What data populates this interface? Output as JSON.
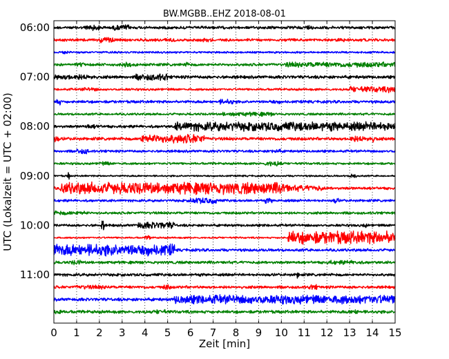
{
  "chart_data": {
    "type": "line",
    "title": "BW.MGBB..EHZ 2018-08-01",
    "xlabel": "Zeit  [min]",
    "ylabel": "UTC (Lokalzeit = UTC + 02:00)",
    "xlim": [
      0,
      15
    ],
    "x_ticks": [
      "0",
      "1",
      "2",
      "3",
      "4",
      "5",
      "6",
      "7",
      "8",
      "9",
      "10",
      "11",
      "12",
      "13",
      "14",
      "15"
    ],
    "y_tick_labels": [
      "06:00",
      "07:00",
      "08:00",
      "09:00",
      "10:00",
      "11:00"
    ],
    "grid": "vertical dotted lines at each minute",
    "colors": [
      "#000000",
      "#ff0000",
      "#0000ff",
      "#008000"
    ],
    "series": [
      {
        "start": "06:00",
        "color": "#000000",
        "amplitude": 1.0,
        "bursts": [
          [
            1.4,
            2.0,
            2.2
          ],
          [
            2.6,
            3.3,
            2.0
          ],
          [
            11.0,
            11.4,
            1.8
          ]
        ]
      },
      {
        "start": "06:15",
        "color": "#ff0000",
        "amplitude": 1.0,
        "bursts": [
          [
            2.0,
            2.6,
            2.2
          ],
          [
            4.8,
            5.3,
            1.6
          ],
          [
            6.5,
            7.0,
            1.4
          ],
          [
            12.5,
            12.8,
            1.4
          ]
        ]
      },
      {
        "start": "06:30",
        "color": "#0000ff",
        "amplitude": 0.7,
        "bursts": [
          [
            0.3,
            0.6,
            1.2
          ]
        ]
      },
      {
        "start": "06:45",
        "color": "#008000",
        "amplitude": 1.0,
        "bursts": [
          [
            1.0,
            1.3,
            1.6
          ],
          [
            3.0,
            3.4,
            1.9
          ],
          [
            5.7,
            6.0,
            1.7
          ],
          [
            10.2,
            15.0,
            1.9
          ]
        ]
      },
      {
        "start": "07:00",
        "color": "#000000",
        "amplitude": 1.1,
        "bursts": [
          [
            0.0,
            1.8,
            2.0
          ],
          [
            3.6,
            5.0,
            2.4
          ],
          [
            4.8,
            4.9,
            3.0
          ]
        ]
      },
      {
        "start": "07:15",
        "color": "#ff0000",
        "amplitude": 0.8,
        "bursts": [
          [
            1.2,
            1.9,
            1.4
          ],
          [
            13.0,
            15.0,
            2.2
          ]
        ]
      },
      {
        "start": "07:30",
        "color": "#0000ff",
        "amplitude": 1.0,
        "bursts": [
          [
            0.0,
            0.3,
            2.2
          ],
          [
            7.3,
            7.9,
            1.9
          ],
          [
            9.5,
            10.0,
            1.4
          ]
        ]
      },
      {
        "start": "07:45",
        "color": "#008000",
        "amplitude": 0.8,
        "bursts": [
          [
            7.4,
            9.6,
            1.5
          ]
        ]
      },
      {
        "start": "08:00",
        "color": "#000000",
        "amplitude": 1.0,
        "bursts": [
          [
            1.4,
            2.0,
            1.6
          ],
          [
            5.3,
            15.0,
            3.2
          ]
        ]
      },
      {
        "start": "08:15",
        "color": "#ff0000",
        "amplitude": 1.1,
        "bursts": [
          [
            0.0,
            0.2,
            2.4
          ],
          [
            3.8,
            6.6,
            3.2
          ],
          [
            13.0,
            14.2,
            2.2
          ]
        ]
      },
      {
        "start": "08:30",
        "color": "#0000ff",
        "amplitude": 0.9,
        "bursts": [
          [
            1.0,
            1.5,
            2.0
          ],
          [
            9.5,
            10.0,
            1.5
          ]
        ]
      },
      {
        "start": "08:45",
        "color": "#008000",
        "amplitude": 0.8,
        "bursts": [
          [
            2.0,
            2.5,
            1.4
          ],
          [
            9.3,
            10.0,
            1.9
          ]
        ]
      },
      {
        "start": "09:00",
        "color": "#000000",
        "amplitude": 0.6,
        "bursts": [
          [
            0.6,
            0.7,
            2.8
          ],
          [
            13.0,
            13.3,
            1.8
          ]
        ]
      },
      {
        "start": "09:15",
        "color": "#ff0000",
        "amplitude": 1.0,
        "bursts": [
          [
            0.3,
            10.3,
            4.2
          ],
          [
            10.3,
            11.8,
            2.2
          ]
        ]
      },
      {
        "start": "09:30",
        "color": "#0000ff",
        "amplitude": 0.9,
        "bursts": [
          [
            6.0,
            7.2,
            2.2
          ],
          [
            9.3,
            9.6,
            1.8
          ],
          [
            12.3,
            12.5,
            2.0
          ]
        ]
      },
      {
        "start": "09:45",
        "color": "#008000",
        "amplitude": 0.9,
        "bursts": [
          [
            0.0,
            1.5,
            1.5
          ]
        ]
      },
      {
        "start": "10:00",
        "color": "#000000",
        "amplitude": 0.9,
        "bursts": [
          [
            2.1,
            2.2,
            4.0
          ],
          [
            3.6,
            5.3,
            2.4
          ],
          [
            13.6,
            13.8,
            1.6
          ]
        ]
      },
      {
        "start": "10:15",
        "color": "#ff0000",
        "amplitude": 0.6,
        "bursts": [
          [
            4.0,
            4.3,
            1.5
          ],
          [
            10.3,
            15.0,
            4.6
          ]
        ]
      },
      {
        "start": "10:30",
        "color": "#0000ff",
        "amplitude": 1.0,
        "bursts": [
          [
            0.0,
            5.3,
            4.2
          ]
        ]
      },
      {
        "start": "10:45",
        "color": "#008000",
        "amplitude": 1.0,
        "bursts": [
          [
            0.8,
            1.2,
            1.8
          ],
          [
            12.0,
            13.5,
            1.5
          ]
        ]
      },
      {
        "start": "11:00",
        "color": "#000000",
        "amplitude": 1.0,
        "bursts": [
          [
            10.7,
            10.8,
            2.8
          ]
        ]
      },
      {
        "start": "11:15",
        "color": "#ff0000",
        "amplitude": 1.0,
        "bursts": [
          [
            1.0,
            2.4,
            1.5
          ],
          [
            4.8,
            5.1,
            2.0
          ],
          [
            11.2,
            11.6,
            1.8
          ]
        ]
      },
      {
        "start": "11:30",
        "color": "#0000ff",
        "amplitude": 1.1,
        "bursts": [
          [
            5.3,
            15.0,
            3.2
          ]
        ]
      },
      {
        "start": "11:45",
        "color": "#008000",
        "amplitude": 1.1,
        "bursts": [
          [
            0.0,
            0.3,
            2.2
          ],
          [
            4.5,
            4.9,
            1.8
          ],
          [
            13.0,
            13.4,
            1.8
          ]
        ]
      }
    ]
  }
}
